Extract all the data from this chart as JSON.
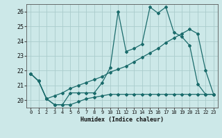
{
  "xlabel": "Humidex (Indice chaleur)",
  "ylabel": "",
  "bg_color": "#cce8e8",
  "grid_color": "#aacccc",
  "line_color": "#1a6b6b",
  "xlim": [
    -0.5,
    23.5
  ],
  "ylim": [
    19.5,
    26.5
  ],
  "xticks": [
    0,
    1,
    2,
    3,
    4,
    5,
    6,
    7,
    8,
    9,
    10,
    11,
    12,
    13,
    14,
    15,
    16,
    17,
    18,
    19,
    20,
    21,
    22,
    23
  ],
  "yticks": [
    20,
    21,
    22,
    23,
    24,
    25,
    26
  ],
  "line1_x": [
    0,
    1,
    2,
    3,
    4,
    5,
    6,
    7,
    8,
    9,
    10,
    11,
    12,
    13,
    14,
    15,
    16,
    17,
    18,
    19,
    20,
    21,
    22,
    23
  ],
  "line1_y": [
    21.8,
    21.3,
    20.1,
    19.7,
    19.7,
    20.5,
    20.5,
    20.5,
    20.5,
    21.2,
    22.2,
    26.0,
    23.3,
    23.5,
    23.8,
    26.3,
    25.9,
    26.3,
    24.6,
    24.3,
    23.7,
    21.1,
    20.4,
    20.4
  ],
  "line2_x": [
    0,
    1,
    2,
    3,
    4,
    5,
    6,
    7,
    8,
    9,
    10,
    11,
    12,
    13,
    14,
    15,
    16,
    17,
    18,
    19,
    20,
    21,
    22,
    23
  ],
  "line2_y": [
    21.8,
    21.3,
    20.1,
    20.3,
    20.5,
    20.8,
    21.0,
    21.2,
    21.4,
    21.6,
    21.9,
    22.1,
    22.3,
    22.6,
    22.9,
    23.2,
    23.5,
    23.9,
    24.2,
    24.5,
    24.8,
    24.5,
    22.0,
    20.4
  ],
  "line3_x": [
    0,
    1,
    2,
    3,
    4,
    5,
    6,
    7,
    8,
    9,
    10,
    11,
    12,
    13,
    14,
    15,
    16,
    17,
    18,
    19,
    20,
    21,
    22,
    23
  ],
  "line3_y": [
    21.8,
    21.3,
    20.1,
    19.7,
    19.7,
    19.7,
    19.9,
    20.1,
    20.2,
    20.3,
    20.4,
    20.4,
    20.4,
    20.4,
    20.4,
    20.4,
    20.4,
    20.4,
    20.4,
    20.4,
    20.4,
    20.4,
    20.4,
    20.4
  ],
  "marker": "D",
  "markersize": 2.0,
  "linewidth": 0.9
}
